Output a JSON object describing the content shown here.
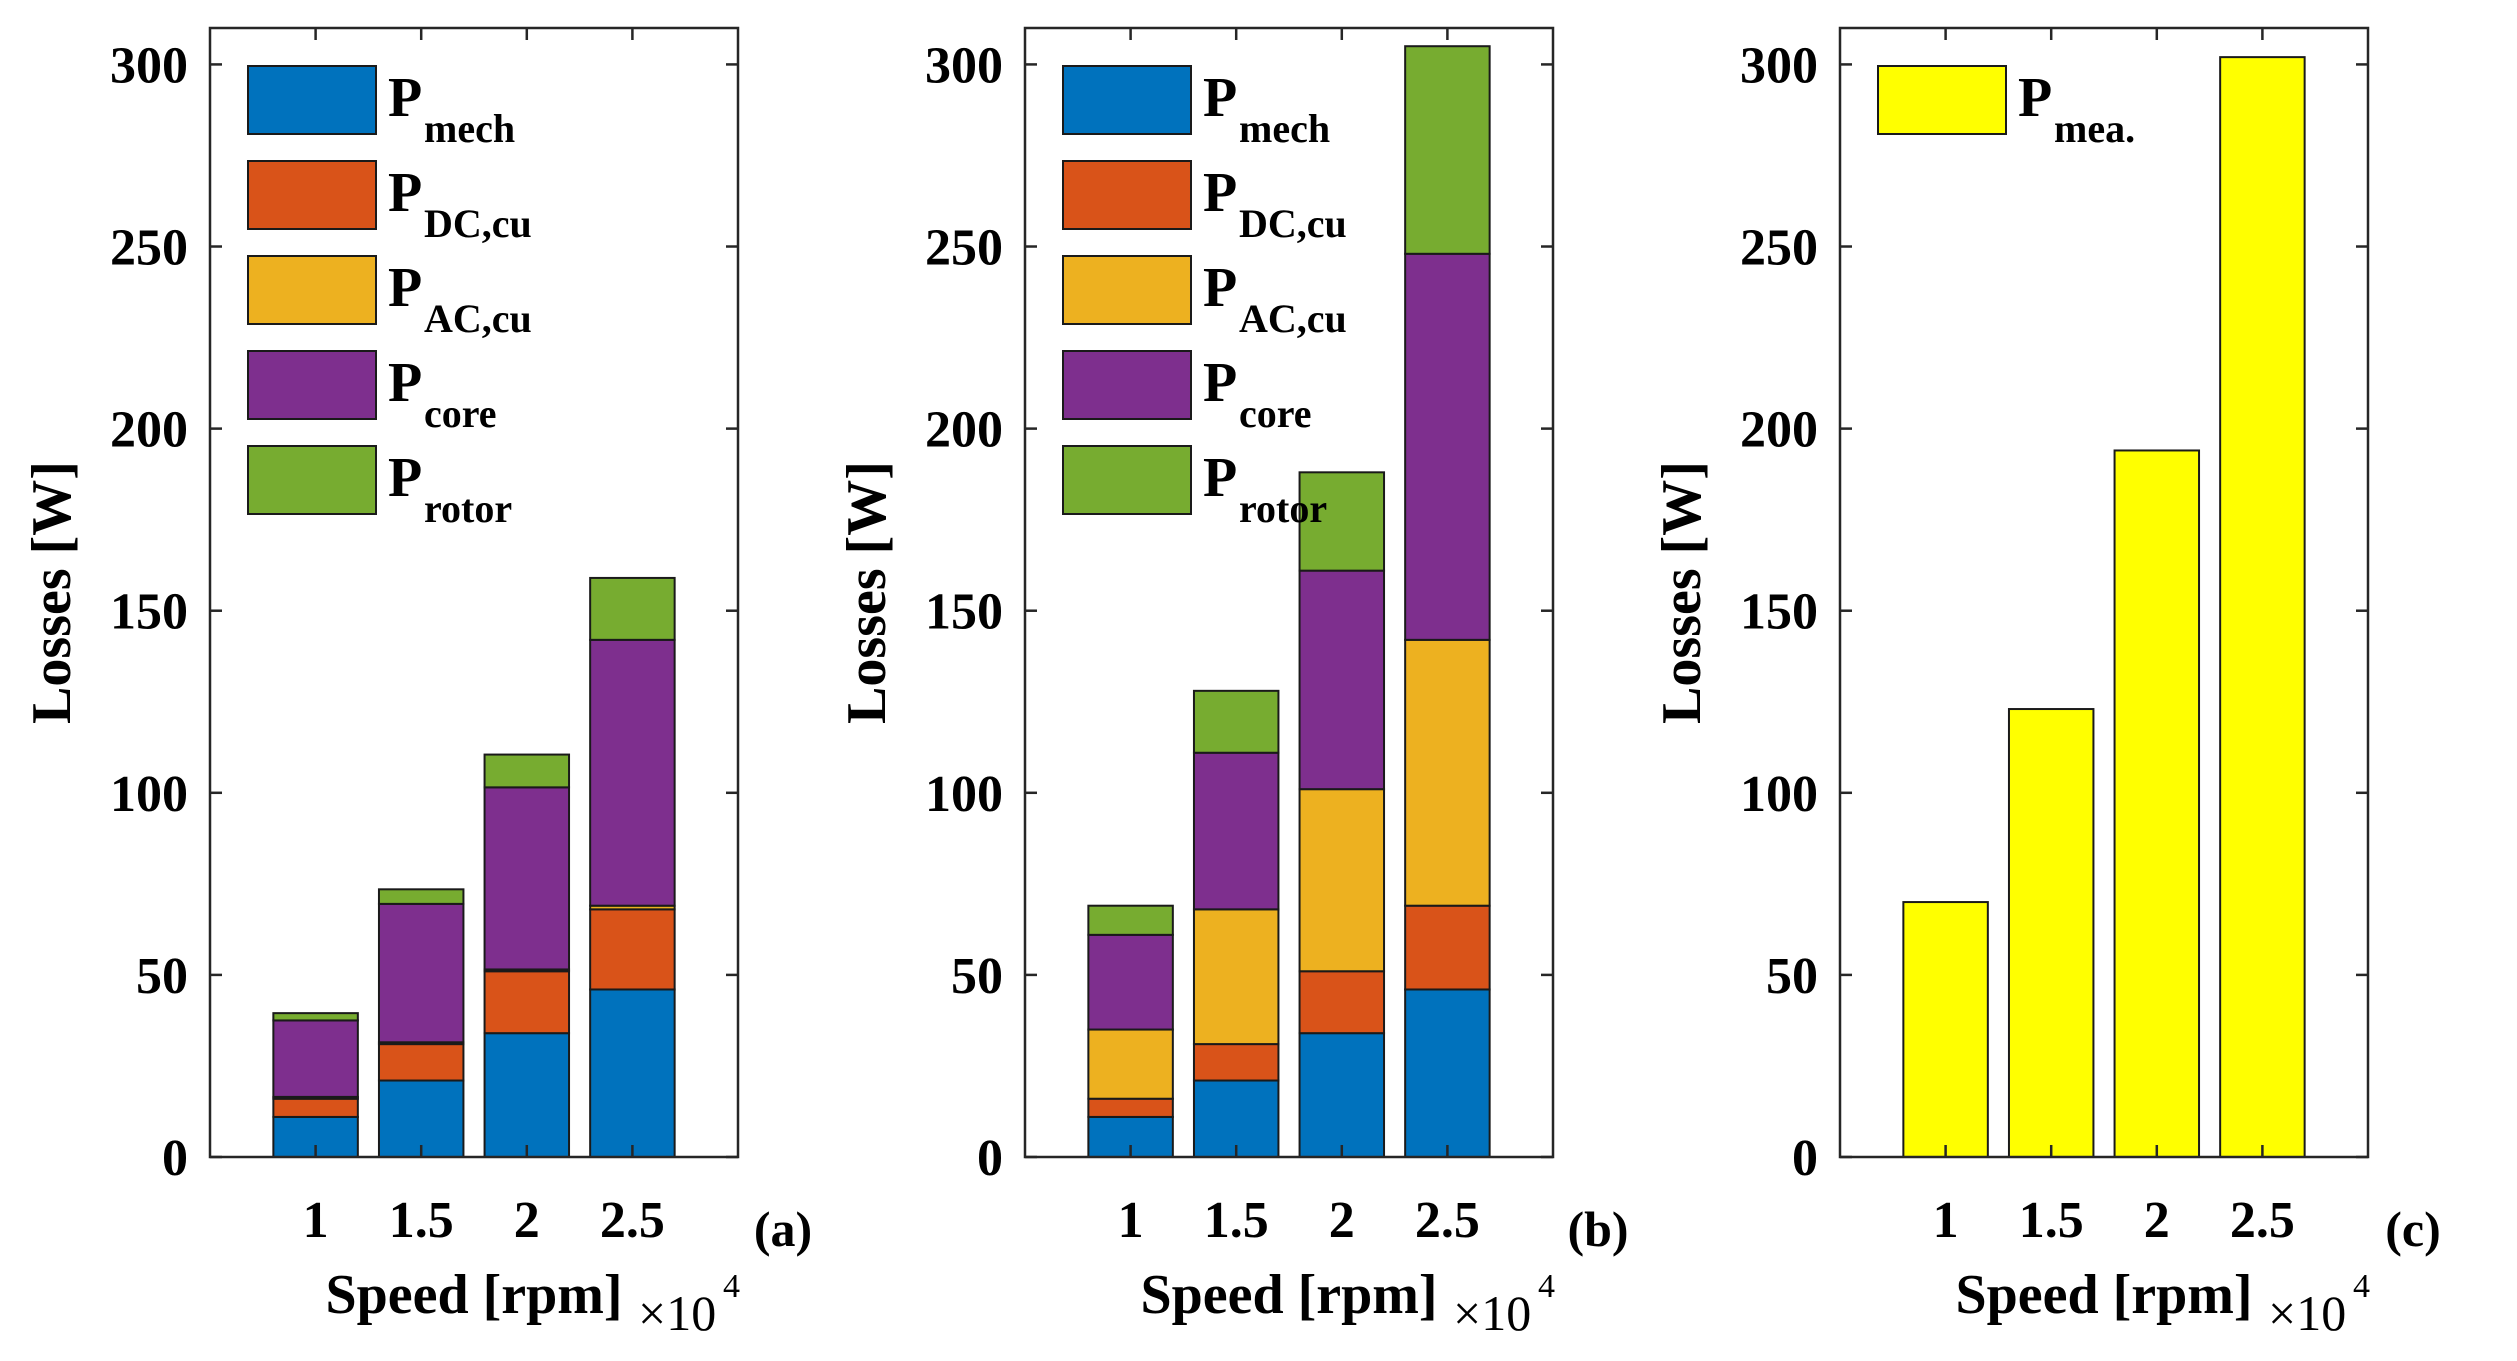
{
  "chart_data": [
    {
      "type": "bar",
      "stacked": true,
      "panel_label": "(a)",
      "categories": [
        "1",
        "1.5",
        "2",
        "2.5"
      ],
      "xlabel": "Speed [rpm]",
      "x_multiplier": "×10",
      "x_multiplier_exp": "4",
      "ylabel": "Losses [W]",
      "ylim": [
        0,
        310
      ],
      "yticks": [
        "0",
        "50",
        "100",
        "150",
        "200",
        "250",
        "300"
      ],
      "ytick_values": [
        0,
        50,
        100,
        150,
        200,
        250,
        300
      ],
      "legend": "top-left",
      "series": [
        {
          "name": "P",
          "sub": "mech",
          "color": "#0072BD",
          "values": [
            11,
            21,
            34,
            46
          ]
        },
        {
          "name": "P",
          "sub": "DC,cu",
          "color": "#D95319",
          "values": [
            5,
            10,
            17,
            22
          ]
        },
        {
          "name": "P",
          "sub": "AC,cu",
          "color": "#EDB120",
          "values": [
            0.5,
            0.5,
            0.5,
            1
          ]
        },
        {
          "name": "P",
          "sub": "core",
          "color": "#7E2F8E",
          "values": [
            21,
            38,
            50,
            73
          ]
        },
        {
          "name": "P",
          "sub": "rotor",
          "color": "#77AC30",
          "values": [
            2,
            4,
            9,
            17
          ]
        }
      ]
    },
    {
      "type": "bar",
      "stacked": true,
      "panel_label": "(b)",
      "categories": [
        "1",
        "1.5",
        "2",
        "2.5"
      ],
      "xlabel": "Speed [rpm]",
      "x_multiplier": "×10",
      "x_multiplier_exp": "4",
      "ylabel": "Losses [W]",
      "ylim": [
        0,
        310
      ],
      "yticks": [
        "0",
        "50",
        "100",
        "150",
        "200",
        "250",
        "300"
      ],
      "ytick_values": [
        0,
        50,
        100,
        150,
        200,
        250,
        300
      ],
      "legend": "top-left",
      "series": [
        {
          "name": "P",
          "sub": "mech",
          "color": "#0072BD",
          "values": [
            11,
            21,
            34,
            46
          ]
        },
        {
          "name": "P",
          "sub": "DC,cu",
          "color": "#D95319",
          "values": [
            5,
            10,
            17,
            23
          ]
        },
        {
          "name": "P",
          "sub": "AC,cu",
          "color": "#EDB120",
          "values": [
            19,
            37,
            50,
            73
          ]
        },
        {
          "name": "P",
          "sub": "core",
          "color": "#7E2F8E",
          "values": [
            26,
            43,
            60,
            106
          ]
        },
        {
          "name": "P",
          "sub": "rotor",
          "color": "#77AC30",
          "values": [
            8,
            17,
            27,
            57
          ]
        }
      ]
    },
    {
      "type": "bar",
      "stacked": false,
      "panel_label": "(c)",
      "categories": [
        "1",
        "1.5",
        "2",
        "2.5"
      ],
      "xlabel": "Speed [rpm]",
      "x_multiplier": "×10",
      "x_multiplier_exp": "4",
      "ylabel": "Losses [W]",
      "ylim": [
        0,
        310
      ],
      "yticks": [
        "0",
        "50",
        "100",
        "150",
        "200",
        "250",
        "300"
      ],
      "ytick_values": [
        0,
        50,
        100,
        150,
        200,
        250,
        300
      ],
      "legend": "top-left",
      "series": [
        {
          "name": "P",
          "sub": "mea.",
          "color": "#FFFF00",
          "values": [
            70,
            123,
            194,
            302
          ]
        }
      ]
    }
  ]
}
